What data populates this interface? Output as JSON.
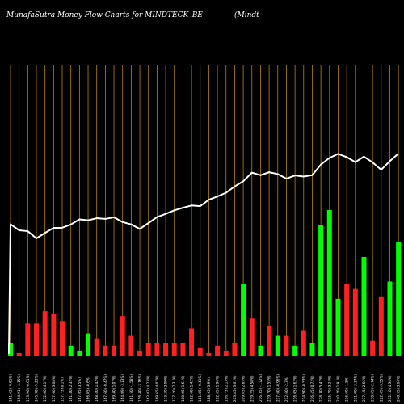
{
  "chart_data": {
    "type": "bar+line",
    "title_left": "MunafaSutra  Money Flow  Charts for MINDTECK_BE",
    "title_right": "(Mindt",
    "colors": {
      "background": "#000000",
      "grid": "#b8860b",
      "line": "#ffffff",
      "up": "#00ff00",
      "down": "#ff2020"
    },
    "categories": [
      "161.62 (-0.61%)",
      "154.91 (-4.15%)",
      "153.96 (-0.61%)",
      "145.90 (-5.23%)",
      "152.00 (4.17%)",
      "157.60 (3.68%)",
      "157.75 (0.1%)",
      "161.40 (2.32%)",
      "167.05 (3.5%)",
      "166.05 (-0.6%)",
      "168.40 (1.42%)",
      "167.60 (-0.47%)",
      "169.40 (1.07%)",
      "164.09 (-3.13%)",
      "161.50 (-1.58%)",
      "156.40 (-3.16%)",
      "163.02 (4.23%)",
      "169.65 (4.07%)",
      "173.20 (2.09%)",
      "177.20 (2.31%)",
      "180.05 (1.61%)",
      "182.60 (1.42%)",
      "181.85 (-0.41%)",
      "188.95 (3.9%)",
      "192.65 (1.96%)",
      "196.75 (2.13%)",
      "203.85 (3.61%)",
      "209.65 (2.85%)",
      "219.25 (4.58%)",
      "216.35 (-1.32%)",
      "219.70 (1.55%)",
      "217.60 (-0.96%)",
      "212.60 (-2.3%)",
      "216.05 (1.62%)",
      "214.90 (-0.53%)",
      "216.45 (0.72%)",
      "228.30 (5.47%)",
      "235.70 (3.24%)",
      "240.20 (1.91%)",
      "236.60 (-1.5%)",
      "231.00 (-2.37%)",
      "237.15 (2.66%)",
      "230.65 (-2.74%)",
      "222.45 (-3.55%)",
      "232.10 (4.34%)",
      "240.55 (3.64%)"
    ],
    "price": [
      161.62,
      154.91,
      153.96,
      145.9,
      152.0,
      157.6,
      157.75,
      161.4,
      167.05,
      166.05,
      168.4,
      167.6,
      169.4,
      164.09,
      161.5,
      156.4,
      163.02,
      169.65,
      173.2,
      177.2,
      180.05,
      182.6,
      181.85,
      188.95,
      192.65,
      196.75,
      203.85,
      209.65,
      219.25,
      216.35,
      219.7,
      217.6,
      212.6,
      216.05,
      214.9,
      216.45,
      228.3,
      235.7,
      240.2,
      236.6,
      231.0,
      237.15,
      230.65,
      222.45,
      232.1,
      240.55
    ],
    "line_values": [
      66,
      68,
      76,
      91,
      94,
      76,
      62,
      45,
      38,
      42,
      47,
      53,
      49,
      57,
      66,
      55,
      46,
      41,
      43,
      39,
      33,
      27,
      22,
      25,
      22,
      27,
      24,
      25,
      21,
      17,
      12,
      13,
      12,
      10,
      6,
      5.5,
      8,
      7,
      5,
      2,
      2,
      15,
      5,
      8,
      13,
      2
    ],
    "line_first": 82,
    "flow": [
      5,
      1,
      13,
      -13,
      18,
      17,
      -14,
      4,
      -2,
      9,
      -7,
      4,
      4,
      -16,
      -8,
      -2,
      5,
      -5,
      -5,
      5,
      5,
      11,
      -3,
      -1,
      4,
      -2,
      -5,
      29,
      15,
      4,
      -12,
      8,
      -8,
      4,
      -10,
      5,
      53,
      59,
      23,
      29,
      27,
      40,
      -6,
      24,
      30,
      46
    ],
    "flow_signs": [
      "up",
      "down",
      "down",
      "down",
      "down",
      "down",
      "down",
      "up",
      "up",
      "up",
      "down",
      "down",
      "down",
      "down",
      "down",
      "down",
      "down",
      "down",
      "down",
      "down",
      "down",
      "down",
      "down",
      "down",
      "down",
      "down",
      "down",
      "up",
      "down",
      "up",
      "down",
      "up",
      "down",
      "up",
      "down",
      "up",
      "up",
      "up",
      "up",
      "down",
      "down",
      "up",
      "down",
      "down",
      "up",
      "up"
    ]
  }
}
